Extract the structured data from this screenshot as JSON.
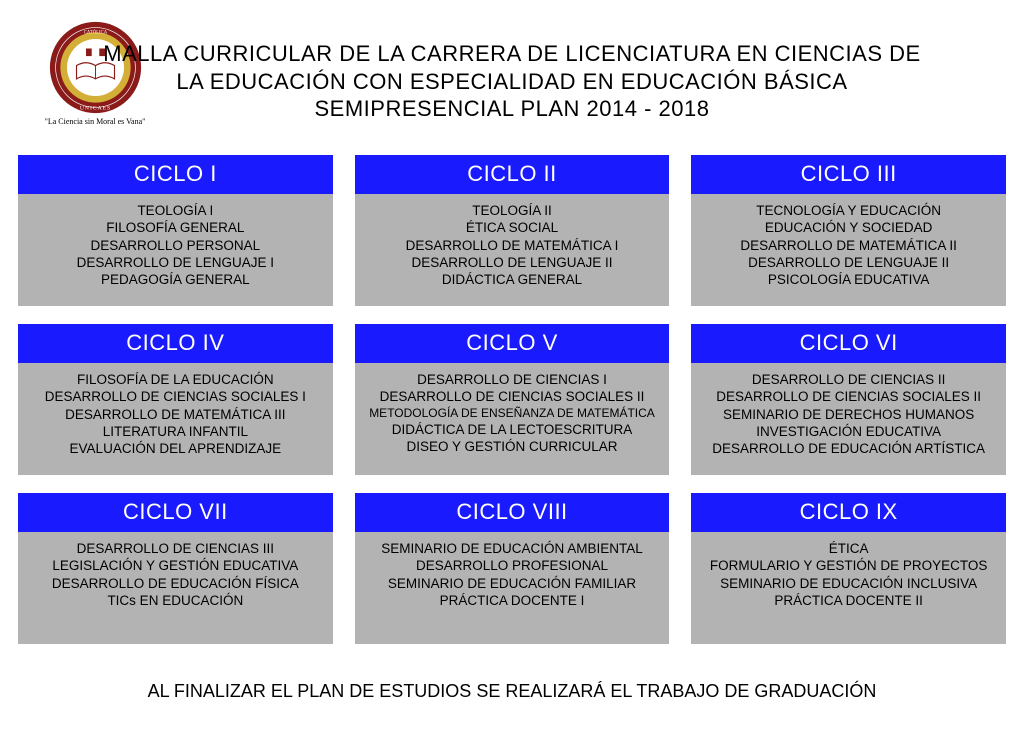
{
  "logo": {
    "top_text": "UNIVERSIDAD CATÓLICA DE EL SALVADOR",
    "bottom_text": "UNICAES",
    "motto": "\"La Ciencia  sin Moral es Vana\"",
    "outer_color": "#8b1a1a",
    "band_color": "#d4af37",
    "inner_color": "#ffffff"
  },
  "title": {
    "line1": "MALLA CURRICULAR DE LA CARRERA DE LICENCIATURA EN CIENCIAS DE",
    "line2": "LA EDUCACIÓN CON ESPECIALIDAD EN EDUCACIÓN BÁSICA",
    "line3": "SEMIPRESENCIAL PLAN 2014 - 2018"
  },
  "colors": {
    "header_bg": "#1a1aff",
    "header_text": "#ffffff",
    "body_bg": "#b3b3b3",
    "body_text": "#000000",
    "page_bg": "#ffffff"
  },
  "cycles": [
    {
      "label": "CICLO I",
      "courses": [
        "TEOLOGÍA I",
        "FILOSOFÍA GENERAL",
        "DESARROLLO PERSONAL",
        "DESARROLLO DE LENGUAJE I",
        "PEDAGOGÍA GENERAL"
      ]
    },
    {
      "label": "CICLO II",
      "courses": [
        "TEOLOGÍA II",
        "ÉTICA SOCIAL",
        "DESARROLLO DE MATEMÁTICA I",
        "DESARROLLO DE LENGUAJE II",
        "DIDÁCTICA GENERAL"
      ]
    },
    {
      "label": "CICLO III",
      "courses": [
        "TECNOLOGÍA Y EDUCACIÓN",
        "EDUCACIÓN Y SOCIEDAD",
        "DESARROLLO DE MATEMÁTICA II",
        "DESARROLLO DE LENGUAJE II",
        "PSICOLOGÍA EDUCATIVA"
      ]
    },
    {
      "label": "CICLO IV",
      "courses": [
        "FILOSOFÍA DE LA EDUCACIÓN",
        "DESARROLLO DE CIENCIAS SOCIALES I",
        "DESARROLLO DE MATEMÁTICA III",
        "LITERATURA INFANTIL",
        "EVALUACIÓN DEL APRENDIZAJE"
      ]
    },
    {
      "label": "CICLO V",
      "courses": [
        "DESARROLLO DE CIENCIAS I",
        "DESARROLLO DE CIENCIAS SOCIALES II",
        "METODOLOGÍA DE ENSEÑANZA DE MATEMÁTICA",
        "DIDÁCTICA DE LA LECTOESCRITURA",
        "DISEO Y GESTIÓN CURRICULAR"
      ]
    },
    {
      "label": "CICLO VI",
      "courses": [
        "DESARROLLO DE CIENCIAS II",
        "DESARROLLO DE CIENCIAS SOCIALES II",
        "SEMINARIO DE DERECHOS HUMANOS",
        "INVESTIGACIÓN EDUCATIVA",
        "DESARROLLO DE EDUCACIÓN ARTÍSTICA"
      ]
    },
    {
      "label": "CICLO VII",
      "courses": [
        "DESARROLLO DE CIENCIAS III",
        "LEGISLACIÓN Y GESTIÓN EDUCATIVA",
        "DESARROLLO DE EDUCACIÓN FÍSICA",
        "TICs EN EDUCACIÓN"
      ]
    },
    {
      "label": "CICLO VIII",
      "courses": [
        "SEMINARIO DE EDUCACIÓN AMBIENTAL",
        "DESARROLLO PROFESIONAL",
        "SEMINARIO DE EDUCACIÓN FAMILIAR",
        "PRÁCTICA DOCENTE I"
      ]
    },
    {
      "label": "CICLO IX",
      "courses": [
        "ÉTICA",
        "FORMULARIO Y GESTIÓN DE PROYECTOS",
        "SEMINARIO DE EDUCACIÓN INCLUSIVA",
        "PRÁCTICA DOCENTE II"
      ]
    }
  ],
  "footer": "AL FINALIZAR EL PLAN DE ESTUDIOS SE REALIZARÁ  EL TRABAJO DE GRADUACIÓN"
}
